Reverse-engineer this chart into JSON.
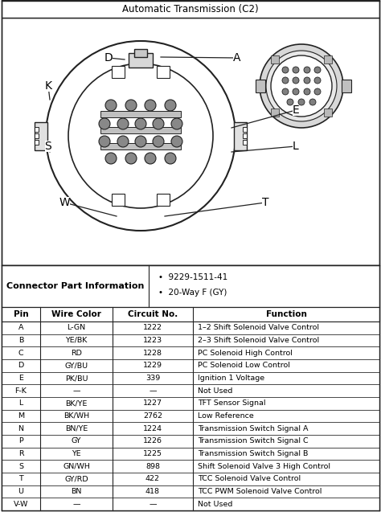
{
  "title": "Automatic Transmission (C2)",
  "connector_info_label": "Connector Part Information",
  "connector_info_items": [
    "9229-1511-41",
    "20-Way F (GY)"
  ],
  "table_headers": [
    "Pin",
    "Wire Color",
    "Circuit No.",
    "Function"
  ],
  "table_rows": [
    [
      "A",
      "L-GN",
      "1222",
      "1–2 Shift Solenoid Valve Control"
    ],
    [
      "B",
      "YE/BK",
      "1223",
      "2–3 Shift Solenoid Valve Control"
    ],
    [
      "C",
      "RD",
      "1228",
      "PC Solenoid High Control"
    ],
    [
      "D",
      "GY/BU",
      "1229",
      "PC Solenoid Low Control"
    ],
    [
      "E",
      "PK/BU",
      "339",
      "Ignition 1 Voltage"
    ],
    [
      "F-K",
      "—",
      "—",
      "Not Used"
    ],
    [
      "L",
      "BK/YE",
      "1227",
      "TFT Sensor Signal"
    ],
    [
      "M",
      "BK/WH",
      "2762",
      "Low Reference"
    ],
    [
      "N",
      "BN/YE",
      "1224",
      "Transmission Switch Signal A"
    ],
    [
      "P",
      "GY",
      "1226",
      "Transmission Switch Signal C"
    ],
    [
      "R",
      "YE",
      "1225",
      "Transmission Switch Signal B"
    ],
    [
      "S",
      "GN/WH",
      "898",
      "Shift Solenoid Valve 3 High Control"
    ],
    [
      "T",
      "GY/RD",
      "422",
      "TCC Solenoid Valve Control"
    ],
    [
      "U",
      "BN",
      "418",
      "TCC PWM Solenoid Valve Control"
    ],
    [
      "V-W",
      "—",
      "—",
      "Not Used"
    ]
  ],
  "bg_color": "#ffffff",
  "border_color": "#222222",
  "line_color": "#222222"
}
